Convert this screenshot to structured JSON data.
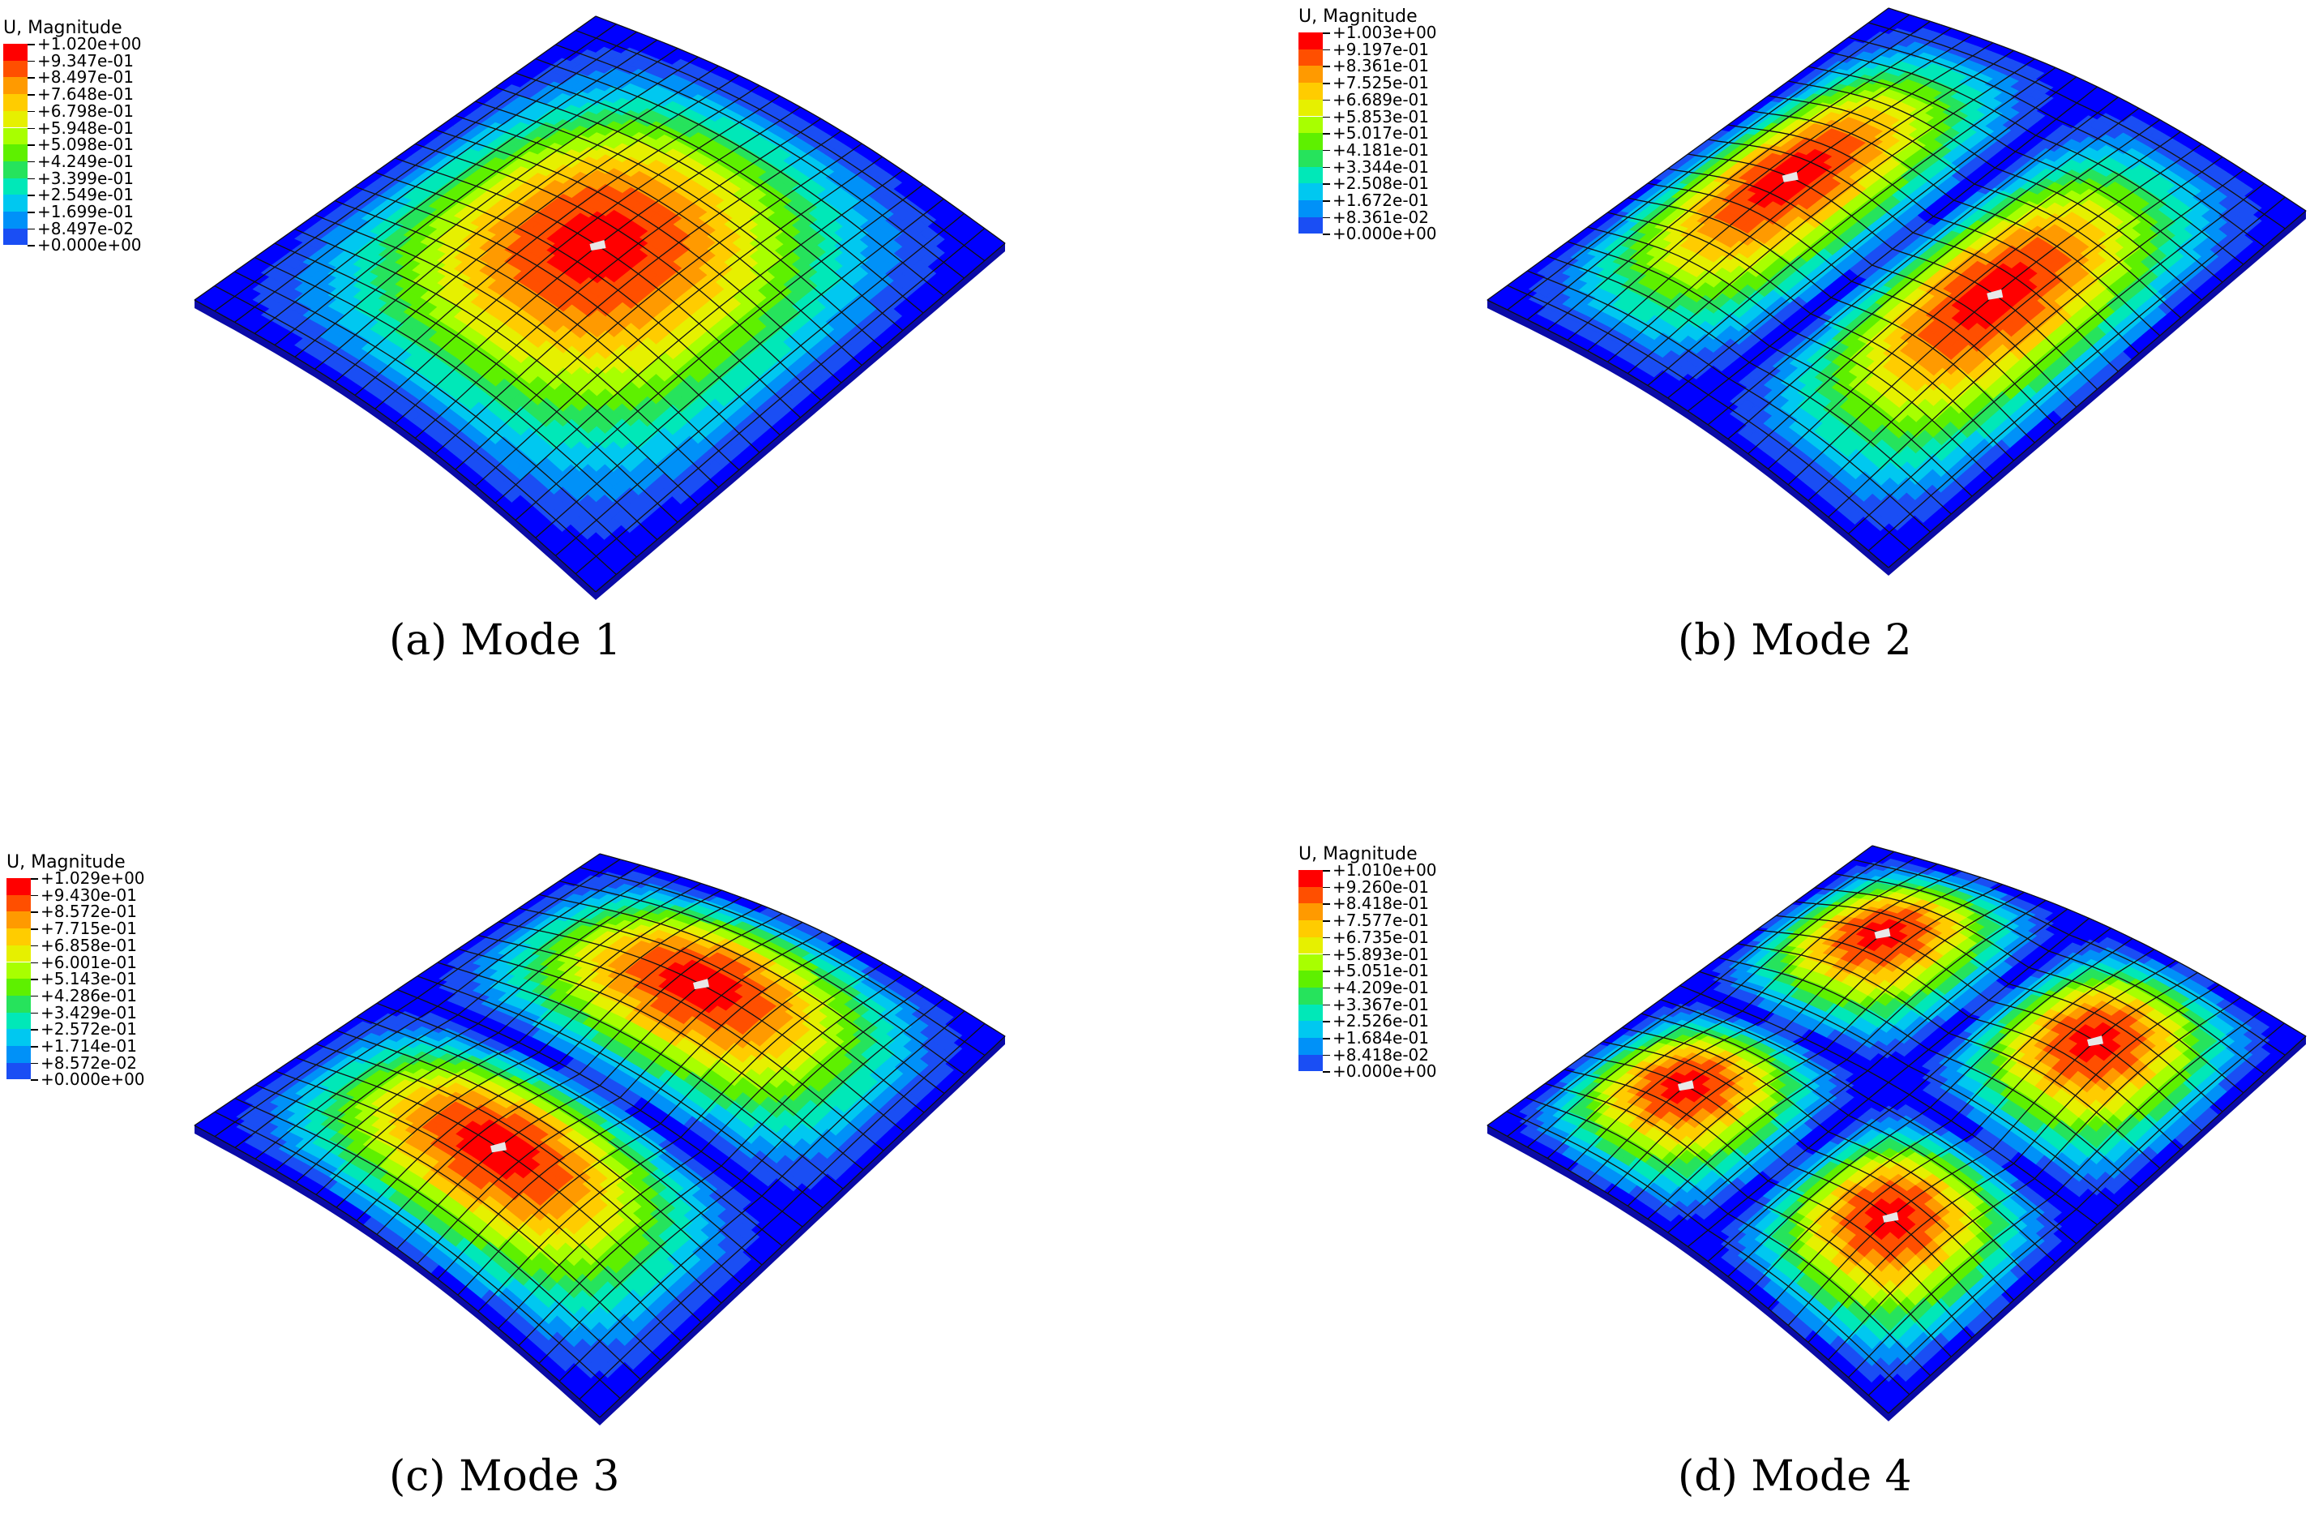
{
  "figure": {
    "panels": [
      {
        "caption": "(a) Mode 1",
        "legend_title": "U, Magnitude",
        "legend_values": [
          "+1.020e+00",
          "+9.347e-01",
          "+8.497e-01",
          "+7.648e-01",
          "+6.798e-01",
          "+5.948e-01",
          "+5.098e-01",
          "+4.249e-01",
          "+3.399e-01",
          "+2.549e-01",
          "+1.699e-01",
          "+8.497e-02",
          "+0.000e+00"
        ],
        "mode_shape": "single",
        "peaks": [
          [
            0.5,
            0.5
          ]
        ]
      },
      {
        "caption": "(b) Mode 2",
        "legend_title": "U, Magnitude",
        "legend_values": [
          "+1.003e+00",
          "+9.197e-01",
          "+8.361e-01",
          "+7.525e-01",
          "+6.689e-01",
          "+5.853e-01",
          "+5.017e-01",
          "+4.181e-01",
          "+3.344e-01",
          "+2.508e-01",
          "+1.672e-01",
          "+8.361e-02",
          "+0.000e+00"
        ],
        "mode_shape": "two-lobe",
        "peaks": [
          [
            0.5,
            0.25
          ],
          [
            0.5,
            0.75
          ]
        ]
      },
      {
        "caption": "(c) Mode 3",
        "legend_title": "U, Magnitude",
        "legend_values": [
          "+1.029e+00",
          "+9.430e-01",
          "+8.572e-01",
          "+7.715e-01",
          "+6.858e-01",
          "+6.001e-01",
          "+5.143e-01",
          "+4.286e-01",
          "+3.429e-01",
          "+2.572e-01",
          "+1.714e-01",
          "+8.572e-02",
          "+0.000e+00"
        ],
        "mode_shape": "two-lobe",
        "peaks": [
          [
            0.25,
            0.5
          ],
          [
            0.75,
            0.5
          ]
        ]
      },
      {
        "caption": "(d) Mode 4",
        "legend_title": "U, Magnitude",
        "legend_values": [
          "+1.010e+00",
          "+9.260e-01",
          "+8.418e-01",
          "+7.577e-01",
          "+6.735e-01",
          "+5.893e-01",
          "+5.051e-01",
          "+4.209e-01",
          "+3.367e-01",
          "+2.526e-01",
          "+1.684e-01",
          "+8.418e-02",
          "+0.000e+00"
        ],
        "mode_shape": "four-lobe",
        "peaks": [
          [
            0.25,
            0.25
          ],
          [
            0.75,
            0.25
          ],
          [
            0.25,
            0.75
          ],
          [
            0.75,
            0.75
          ]
        ]
      }
    ],
    "colormap": [
      "#ff0000",
      "#ff4f00",
      "#ff9a00",
      "#ffcc00",
      "#e6f000",
      "#a8ff00",
      "#5ef000",
      "#26e35c",
      "#00e8b8",
      "#00c8f0",
      "#0091f8",
      "#1a4ef4",
      "#0000ff"
    ]
  }
}
